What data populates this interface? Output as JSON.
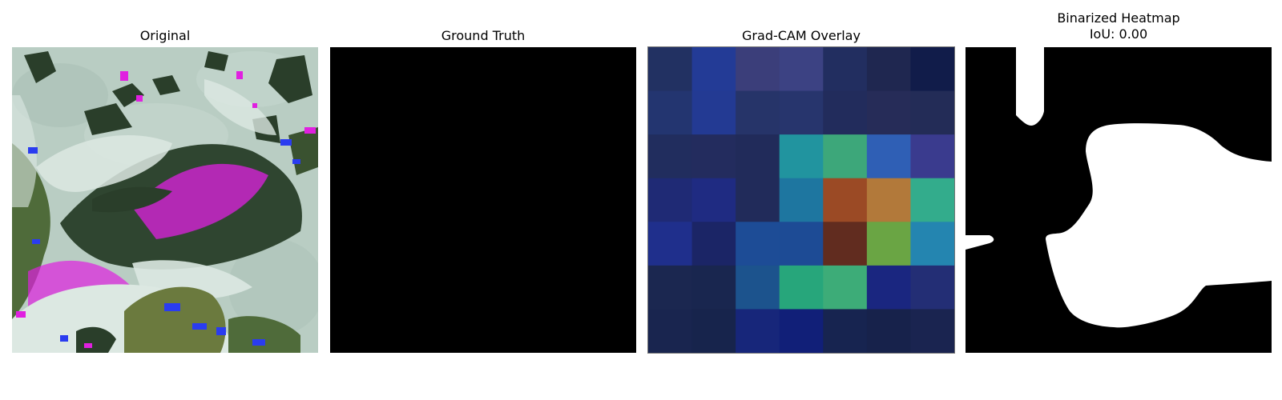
{
  "panels": [
    {
      "title": "Original"
    },
    {
      "title": "Ground Truth"
    },
    {
      "title": "Grad-CAM Overlay"
    },
    {
      "title": "Binarized Heatmap",
      "subtitle": "IoU: 0.00"
    }
  ],
  "gradcam": {
    "rows": 7,
    "cols": 7,
    "colors": [
      [
        "#223162",
        "#233b96",
        "#3b3e7a",
        "#3c4283",
        "#222e60",
        "#1f2750",
        "#111c4a"
      ],
      [
        "#233570",
        "#233a93",
        "#263469",
        "#27356d",
        "#222c5c",
        "#262c58",
        "#232c57"
      ],
      [
        "#212d5e",
        "#232c5e",
        "#212b5a",
        "#21949f",
        "#3da77a",
        "#2f5fb5",
        "#3a3b8e"
      ],
      [
        "#1f2a75",
        "#1f2b82",
        "#212b5a",
        "#1e76a0",
        "#9b4a25",
        "#b2793a",
        "#33ac8c"
      ],
      [
        "#1f2f8c",
        "#1b2566",
        "#1d4c96",
        "#1d4b95",
        "#612c1f",
        "#6aa544",
        "#2485b0"
      ],
      [
        "#1b2750",
        "#19264f",
        "#1c538d",
        "#27a67b",
        "#3dac78",
        "#1a2680",
        "#232e75"
      ],
      [
        "#19254f",
        "#17244c",
        "#17267a",
        "#111f78",
        "#172450",
        "#17224b",
        "#1a2450"
      ]
    ]
  },
  "original": {
    "colors": {
      "background": "#b9cdc3",
      "leaf_light": "#dce8e2",
      "leaf_dark": "#2a3e2a",
      "leaf_mid": "#4f6b3a",
      "magenta": "#e020e0",
      "blue": "#2a3cf0"
    }
  }
}
